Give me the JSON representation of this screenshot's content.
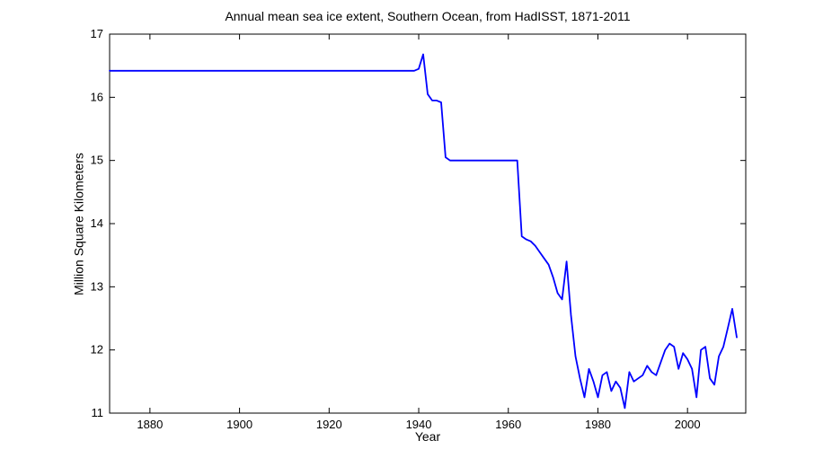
{
  "figure": {
    "background": "#ffffff"
  },
  "chart_data": {
    "type": "line",
    "title": "Annual mean sea ice extent, Southern Ocean, from HadISST, 1871-2011",
    "xlabel": "Year",
    "ylabel": "Million Square Kilometers",
    "xlim": [
      1871,
      2013
    ],
    "ylim": [
      11,
      17
    ],
    "x_ticks": [
      1880,
      1900,
      1920,
      1940,
      1960,
      1980,
      2000
    ],
    "y_ticks": [
      11,
      12,
      13,
      14,
      15,
      16,
      17
    ],
    "grid": false,
    "legend": null,
    "line_color": "#0000ff",
    "axis_color": "#000000",
    "series": [
      {
        "name": "Annual mean sea ice extent",
        "x_start": 1871,
        "x_end": 2011,
        "x_step": 1,
        "y": [
          16.42,
          16.42,
          16.42,
          16.42,
          16.42,
          16.42,
          16.42,
          16.42,
          16.42,
          16.42,
          16.42,
          16.42,
          16.42,
          16.42,
          16.42,
          16.42,
          16.42,
          16.42,
          16.42,
          16.42,
          16.42,
          16.42,
          16.42,
          16.42,
          16.42,
          16.42,
          16.42,
          16.42,
          16.42,
          16.42,
          16.42,
          16.42,
          16.42,
          16.42,
          16.42,
          16.42,
          16.42,
          16.42,
          16.42,
          16.42,
          16.42,
          16.42,
          16.42,
          16.42,
          16.42,
          16.42,
          16.42,
          16.42,
          16.42,
          16.42,
          16.42,
          16.42,
          16.42,
          16.42,
          16.42,
          16.42,
          16.42,
          16.42,
          16.42,
          16.42,
          16.42,
          16.42,
          16.42,
          16.42,
          16.42,
          16.42,
          16.42,
          16.42,
          16.42,
          16.45,
          16.68,
          16.05,
          15.95,
          15.95,
          15.92,
          15.05,
          15.0,
          15.0,
          15.0,
          15.0,
          15.0,
          15.0,
          15.0,
          15.0,
          15.0,
          15.0,
          15.0,
          15.0,
          15.0,
          15.0,
          15.0,
          15.0,
          13.8,
          13.75,
          13.72,
          13.65,
          13.55,
          13.45,
          13.35,
          13.15,
          12.9,
          12.8,
          13.4,
          12.55,
          11.9,
          11.55,
          11.25,
          11.7,
          11.5,
          11.25,
          11.6,
          11.65,
          11.35,
          11.5,
          11.4,
          11.08,
          11.65,
          11.5,
          11.55,
          11.6,
          11.75,
          11.65,
          11.6,
          11.8,
          12.0,
          12.1,
          12.05,
          11.7,
          11.95,
          11.85,
          11.7,
          11.25,
          12.0,
          12.05,
          11.55,
          11.45,
          11.9,
          12.05,
          12.35,
          12.65,
          12.2
        ]
      }
    ]
  }
}
